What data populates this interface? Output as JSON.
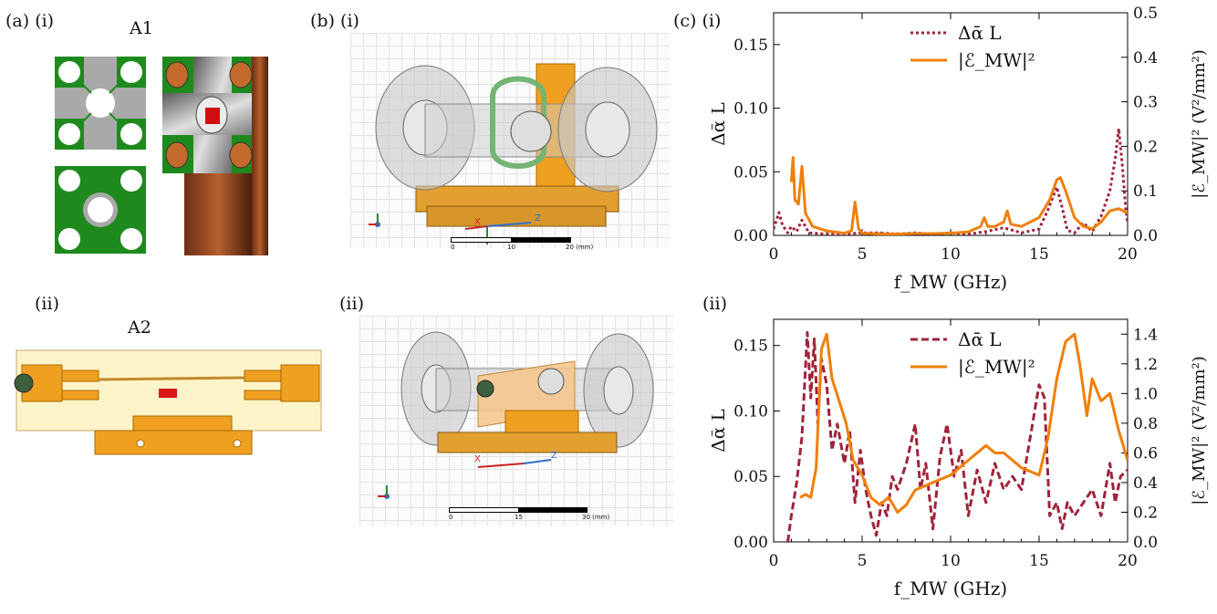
{
  "labels": {
    "a_i": "(a) (i)",
    "a_ii": "(ii)",
    "b_i": "(b) (i)",
    "b_ii": "(ii)",
    "c_i": "(c) (i)",
    "c_ii": "(ii)",
    "a1": "A1",
    "a2": "A2"
  },
  "cad": {
    "scale_i": [
      "0",
      "10",
      "20 (mm)"
    ],
    "scale_ii": [
      "0",
      "15",
      "30 (mm)"
    ],
    "axis_x": "X",
    "axis_z": "Z",
    "axis_y": "Y"
  },
  "colors": {
    "pcb_green": "#1e8a1e",
    "metal_gray": "#a9a9a9",
    "copper": "#b5602f",
    "holder_orange": "#f0a020",
    "glass_gray": "#c8c8c8",
    "delta_alpha": "#a0233a",
    "e_field": "#f07f0a"
  },
  "chart_data": [
    {
      "type": "line",
      "panel": "(c)(i)",
      "xlabel": "f_MW (GHz)",
      "ylabel": "Δᾱ L",
      "y2label": "|ℰ_MW|² (V²/mm²)",
      "xlim": [
        0,
        20
      ],
      "ylim": [
        0,
        0.175
      ],
      "y2lim": [
        0,
        0.5
      ],
      "xticks": [
        "0",
        "5",
        "10",
        "15",
        "20"
      ],
      "yticks": [
        "0.00",
        "0.05",
        "0.10",
        "0.15"
      ],
      "y2ticks": [
        "0.0",
        "0.1",
        "0.2",
        "0.3",
        "0.4",
        "0.5"
      ],
      "legend": [
        "Δᾱ L",
        "|ℰ_MW|²"
      ],
      "legend_position": "top-center",
      "series": [
        {
          "name": "Δᾱ L",
          "axis": "left",
          "style": "dotted",
          "x": [
            0,
            0.3,
            0.5,
            0.8,
            1.0,
            1.3,
            1.6,
            2.0,
            3,
            4,
            5,
            6,
            7,
            8,
            9,
            10,
            11,
            12,
            13,
            14,
            15,
            15.5,
            16.0,
            16.3,
            16.6,
            17,
            17.5,
            18,
            18.5,
            19.0,
            19.3,
            19.5,
            19.7,
            19.9,
            20
          ],
          "y": [
            0.005,
            0.018,
            0.008,
            0.002,
            0.007,
            0.003,
            0.012,
            0.002,
            0.001,
            0.001,
            0.002,
            0.002,
            0.001,
            0.002,
            0.001,
            0.002,
            0.001,
            0.003,
            0.006,
            0.002,
            0.005,
            0.02,
            0.038,
            0.022,
            0.004,
            0.002,
            0.01,
            0.003,
            0.015,
            0.035,
            0.06,
            0.084,
            0.055,
            0.02,
            0.01
          ]
        },
        {
          "name": "|ℰ_MW|²",
          "axis": "right",
          "style": "solid",
          "x": [
            1.0,
            1.1,
            1.2,
            1.4,
            1.6,
            1.8,
            2.2,
            3,
            4,
            4.4,
            4.6,
            4.8,
            5,
            6,
            7,
            8,
            9,
            10,
            11,
            11.7,
            11.9,
            12.1,
            12.5,
            13.0,
            13.2,
            13.4,
            14,
            15,
            15.6,
            16.0,
            16.2,
            16.5,
            17,
            17.5,
            18,
            18.5,
            19,
            19.5,
            20
          ],
          "y": [
            0.12,
            0.175,
            0.08,
            0.07,
            0.155,
            0.05,
            0.02,
            0.01,
            0.005,
            0.01,
            0.075,
            0.015,
            0.005,
            0.003,
            0.003,
            0.004,
            0.004,
            0.005,
            0.008,
            0.02,
            0.04,
            0.02,
            0.02,
            0.03,
            0.055,
            0.025,
            0.02,
            0.04,
            0.08,
            0.125,
            0.13,
            0.1,
            0.04,
            0.02,
            0.015,
            0.03,
            0.055,
            0.06,
            0.05
          ]
        }
      ]
    },
    {
      "type": "line",
      "panel": "(c)(ii)",
      "xlabel": "f_MW (GHz)",
      "ylabel": "Δᾱ L",
      "y2label": "|ℰ_MW|² (V²/mm²)",
      "xlim": [
        0,
        20
      ],
      "ylim": [
        0,
        0.17
      ],
      "y2lim": [
        0,
        1.5
      ],
      "xticks": [
        "0",
        "5",
        "10",
        "15",
        "20"
      ],
      "yticks": [
        "0.00",
        "0.05",
        "0.10",
        "0.15"
      ],
      "y2ticks": [
        "0.0",
        "0.2",
        "0.4",
        "0.6",
        "0.8",
        "1.0",
        "1.2",
        "1.4"
      ],
      "legend": [
        "Δᾱ L",
        "|ℰ_MW|²"
      ],
      "legend_position": "top-center",
      "series": [
        {
          "name": "Δᾱ L",
          "axis": "left",
          "style": "dashed",
          "x": [
            0.8,
            1.0,
            1.3,
            1.6,
            1.9,
            2.1,
            2.3,
            2.5,
            2.7,
            3.0,
            3.3,
            3.6,
            4.0,
            4.3,
            4.6,
            4.9,
            5.2,
            5.5,
            5.8,
            6.1,
            6.4,
            6.7,
            7.0,
            7.5,
            8.0,
            8.3,
            8.6,
            9.0,
            9.4,
            9.8,
            10.2,
            10.6,
            11.0,
            11.5,
            12.0,
            12.5,
            13.0,
            13.5,
            14.0,
            14.5,
            15.0,
            15.3,
            15.6,
            16.0,
            16.3,
            16.6,
            17.0,
            17.5,
            18.0,
            18.5,
            19.0,
            19.3,
            19.6,
            20
          ],
          "y": [
            0.0,
            0.02,
            0.045,
            0.08,
            0.16,
            0.11,
            0.155,
            0.09,
            0.14,
            0.12,
            0.07,
            0.09,
            0.06,
            0.085,
            0.03,
            0.07,
            0.04,
            0.02,
            0.005,
            0.03,
            0.02,
            0.05,
            0.04,
            0.06,
            0.09,
            0.04,
            0.06,
            0.01,
            0.065,
            0.09,
            0.05,
            0.07,
            0.02,
            0.055,
            0.03,
            0.06,
            0.04,
            0.05,
            0.04,
            0.08,
            0.12,
            0.11,
            0.02,
            0.03,
            0.01,
            0.03,
            0.02,
            0.03,
            0.04,
            0.02,
            0.06,
            0.03,
            0.05,
            0.055
          ]
        },
        {
          "name": "|ℰ_MW|²",
          "axis": "right",
          "style": "solid",
          "x": [
            1.5,
            1.8,
            2.1,
            2.4,
            2.7,
            3.0,
            3.3,
            3.7,
            4.1,
            4.5,
            5.0,
            5.5,
            6.0,
            6.5,
            7.0,
            7.5,
            8.0,
            9.0,
            10.0,
            11.0,
            12.0,
            12.5,
            13.0,
            14.0,
            15.0,
            15.5,
            16.0,
            16.5,
            17.0,
            17.3,
            17.7,
            18.0,
            18.5,
            19.0,
            19.5,
            20
          ],
          "y": [
            0.3,
            0.32,
            0.3,
            0.5,
            1.3,
            1.4,
            1.1,
            0.95,
            0.8,
            0.55,
            0.45,
            0.3,
            0.25,
            0.3,
            0.2,
            0.25,
            0.35,
            0.4,
            0.45,
            0.55,
            0.65,
            0.6,
            0.6,
            0.5,
            0.45,
            0.7,
            1.1,
            1.35,
            1.4,
            1.2,
            0.85,
            1.1,
            0.95,
            1.0,
            0.75,
            0.55
          ]
        }
      ]
    }
  ]
}
